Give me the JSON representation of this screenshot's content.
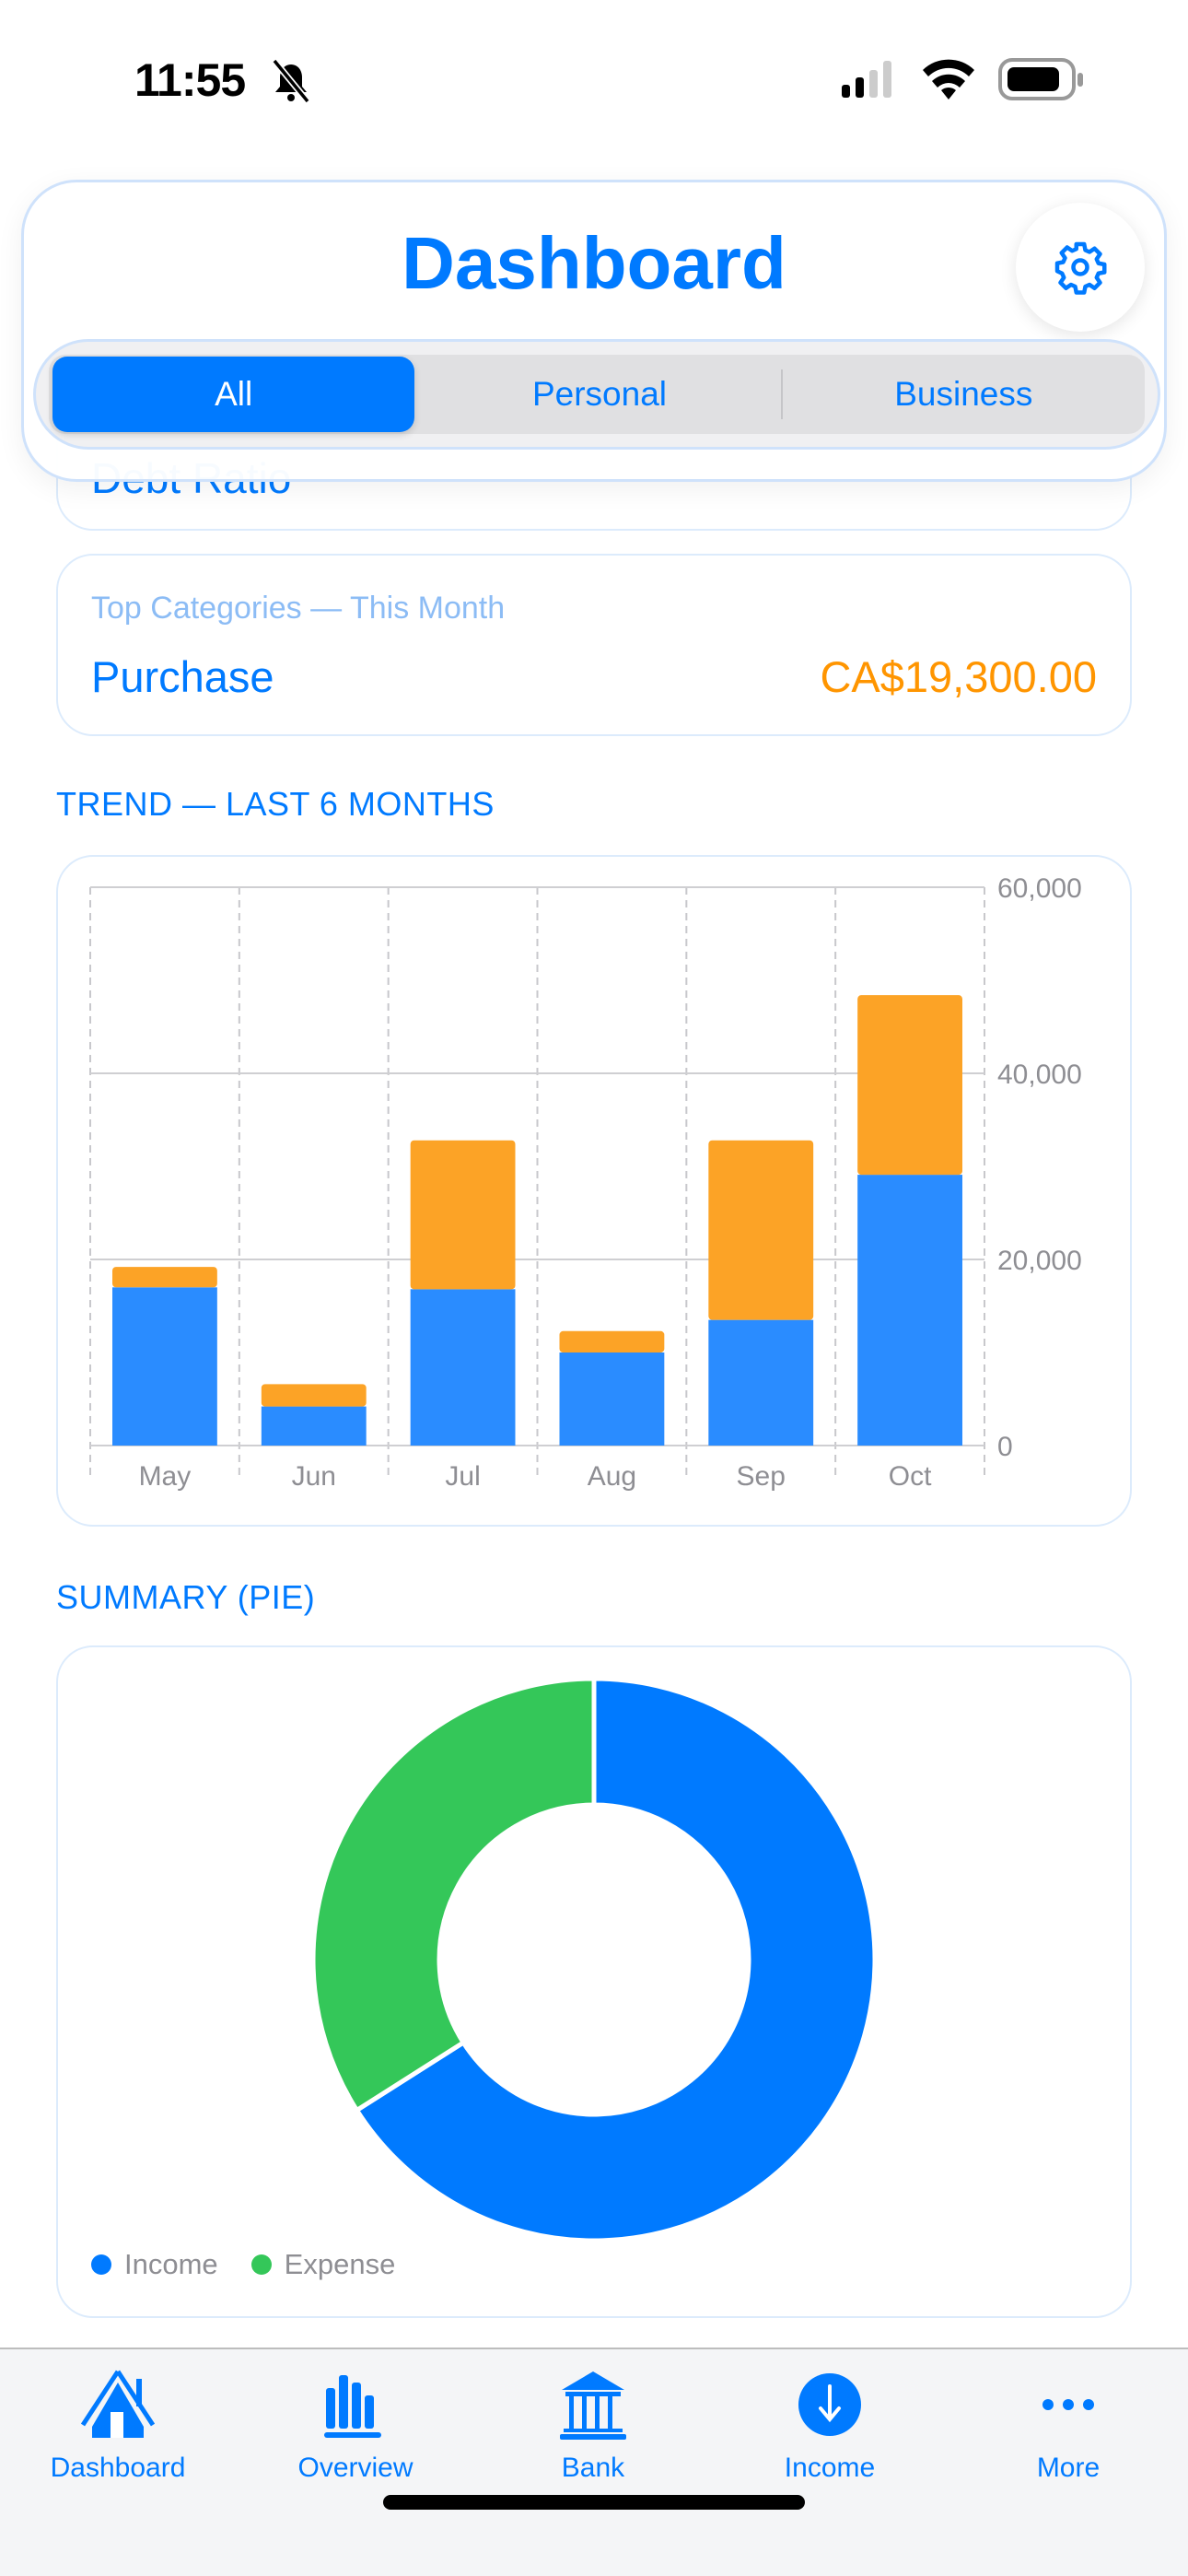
{
  "status_bar": {
    "time": "11:55",
    "icons": [
      "bell-slash-icon",
      "cellular-signal-icon",
      "wifi-icon",
      "battery-icon"
    ]
  },
  "header": {
    "title": "Dashboard",
    "settings_icon": "gear-icon",
    "segments": [
      {
        "label": "All",
        "selected": true
      },
      {
        "label": "Personal",
        "selected": false
      },
      {
        "label": "Business",
        "selected": false
      }
    ]
  },
  "debt_card": {
    "label": "Debt Ratio"
  },
  "top_categories": {
    "subtitle": "Top Categories — This Month",
    "category": "Purchase",
    "amount": "CA$19,300.00"
  },
  "colors": {
    "accent": "#007aff",
    "income": "#2a8cff",
    "expense": "#fca326",
    "pie_income": "#007aff",
    "pie_expense": "#34c759",
    "amount": "#ff9500"
  },
  "trend": {
    "heading": "TREND — LAST 6 MONTHS"
  },
  "summary": {
    "heading": "SUMMARY (PIE)"
  },
  "chart_data": [
    {
      "type": "bar",
      "stacked": true,
      "categories": [
        "May",
        "Jun",
        "Jul",
        "Aug",
        "Sep",
        "Oct"
      ],
      "series": [
        {
          "values": [
            17000,
            4200,
            16800,
            10000,
            13500,
            29100
          ]
        },
        {
          "values": [
            2200,
            2400,
            16000,
            2300,
            19300,
            19300
          ]
        }
      ],
      "yticks": [
        "0",
        "20,000",
        "40,000",
        "60,000"
      ],
      "ylim": [
        0,
        60000
      ],
      "y_axis_side": "right",
      "grid": true
    },
    {
      "type": "pie",
      "donut": true,
      "series": [
        {
          "name": "Income",
          "value": 66
        },
        {
          "name": "Expense",
          "value": 34
        }
      ],
      "legend": "bottom-left"
    }
  ],
  "tabbar": {
    "items": [
      {
        "label": "Dashboard",
        "icon": "house-icon",
        "active": true
      },
      {
        "label": "Overview",
        "icon": "bar-chart-icon"
      },
      {
        "label": "Bank",
        "icon": "bank-icon"
      },
      {
        "label": "Income",
        "icon": "arrow-down-circle-icon"
      },
      {
        "label": "More",
        "icon": "ellipsis-icon"
      }
    ]
  }
}
